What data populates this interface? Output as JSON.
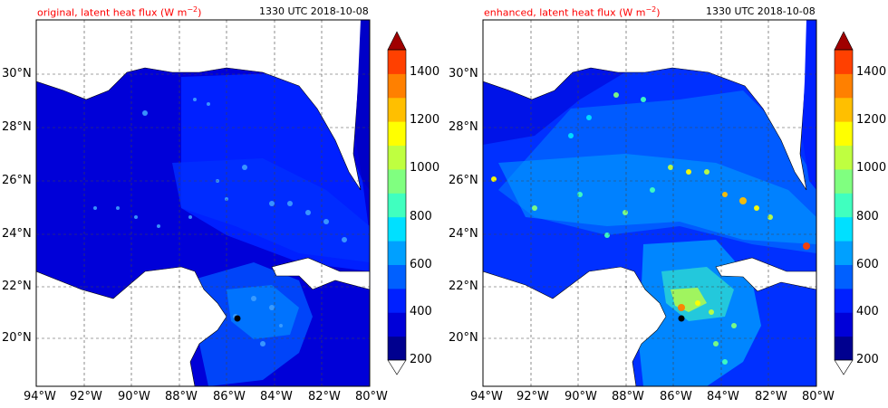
{
  "colors": {
    "levels": [
      "#00008f",
      "#0000d8",
      "#0020ff",
      "#0060ff",
      "#00a0ff",
      "#00e0ff",
      "#40ffbf",
      "#80ff80",
      "#bfff40",
      "#ffff00",
      "#ffbf00",
      "#ff8000",
      "#ff4000",
      "#f00000",
      "#a00000"
    ],
    "ocean_deep": "#0000c8",
    "ocean_mid": "#0020ff",
    "land": "#ffffff",
    "title_red": "#ff0000"
  },
  "panels": [
    {
      "title": "original, latent heat flux (W m",
      "title_unit_sup": "−2",
      "title_close": ")",
      "timestamp": "1330 UTC 2018-10-08",
      "variant": "original"
    },
    {
      "title": "enhanced, latent heat flux (W m",
      "title_unit_sup": "−2",
      "title_close": ")",
      "timestamp": "1330 UTC 2018-10-08",
      "variant": "enhanced"
    }
  ],
  "lon_labels": [
    "94°W",
    "92°W",
    "90°W",
    "88°W",
    "86°W",
    "84°W",
    "82°W",
    "80°W"
  ],
  "lat_labels": [
    "30°N",
    "28°N",
    "26°N",
    "24°N",
    "22°N",
    "20°N"
  ],
  "colorbar": {
    "labels": [
      "1400",
      "1200",
      "1000",
      "800",
      "600",
      "400",
      "200"
    ],
    "range": [
      200,
      1500
    ],
    "extend": "both"
  }
}
